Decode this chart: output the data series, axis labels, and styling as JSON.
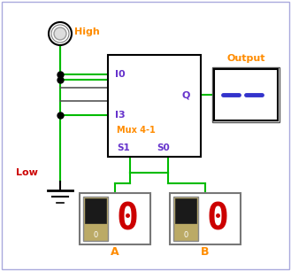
{
  "green": "#00bb00",
  "black": "#000000",
  "blue": "#6633cc",
  "orange": "#ff8c00",
  "red_dark": "#aa0000",
  "gray_border": "#888888",
  "high_label": "High",
  "low_label": "Low",
  "output_label": "Output",
  "mux_label": "Mux 4-1",
  "i0_label": "I0",
  "i3_label": "I3",
  "q_label": "Q",
  "s1_label": "S1",
  "s0_label": "S0",
  "a_label": "A",
  "b_label": "B"
}
